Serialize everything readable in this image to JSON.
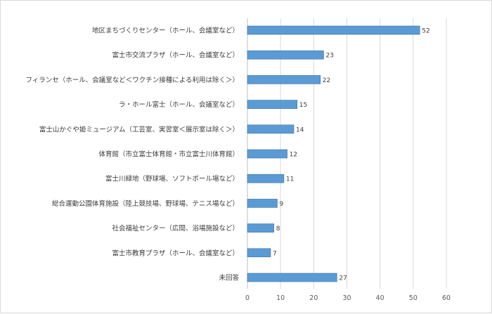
{
  "chart_data": {
    "type": "bar",
    "orientation": "horizontal",
    "categories": [
      "地区まちづくりセンター（ホール、会議室など）",
      "富士市交流プラザ（ホール、会議室など）",
      "フィランセ（ホール、会議室など＜ワクチン接種による利用は除く＞）",
      "ラ・ホール富士（ホール、会議室など）",
      "富士山かぐや姫ミュージアム（工芸室、実習室＜展示室は除く＞）",
      "体育館（市立富士体育館・市立富士川体育館）",
      "富士川緑地（野球場、ソフトボール場など）",
      "総合運動公園体育施設（陸上競技場、野球場、テニス場など）",
      "社会福祉センター（広間、浴場施設など）",
      "富士市教育プラザ（ホール、会議室など）",
      "未回答"
    ],
    "values": [
      52,
      23,
      22,
      15,
      14,
      12,
      11,
      9,
      8,
      7,
      27
    ],
    "xlim": [
      0,
      60
    ],
    "xticks": [
      0,
      10,
      20,
      30,
      40,
      50,
      60
    ],
    "grid": "vertical",
    "legend": "none",
    "colors": {
      "bar": "#5b9bd5",
      "bar_edge": "#41719c",
      "grid": "#d9d9d9"
    }
  }
}
